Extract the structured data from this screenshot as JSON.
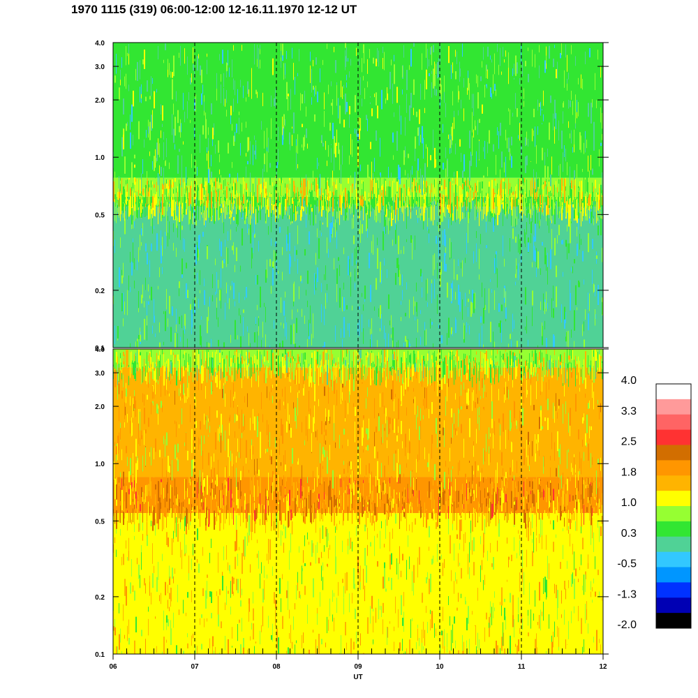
{
  "title": "1970 1115 (319) 06:00-12:00 12-16.11.1970  12-12 UT",
  "chart_data": {
    "type": "heatmap",
    "title": "1970 1115 (319) 06:00-12:00 12-16.11.1970  12-12 UT",
    "xlabel": "UT",
    "x_ticks": [
      "06",
      "07",
      "08",
      "09",
      "10",
      "11",
      "12"
    ],
    "xlim": [
      6,
      12
    ],
    "y_scale": "log",
    "ylim": [
      0.1,
      4.0
    ],
    "panels": [
      {
        "name": "upper",
        "y_ticks": [
          "0.1",
          "0.2",
          "0.5",
          "1.0",
          "2.0",
          "3.0",
          "4.0"
        ],
        "y_tick_values": [
          0.1,
          0.2,
          0.5,
          1.0,
          2.0,
          3.0,
          4.0
        ],
        "bands": [
          {
            "y": [
              0.1,
              0.55
            ],
            "level": 0.2
          },
          {
            "y": [
              0.55,
              0.62
            ],
            "level": 0.6
          },
          {
            "y": [
              0.62,
              0.78
            ],
            "level": 1.0
          },
          {
            "y": [
              0.78,
              4.0
            ],
            "level": 0.4
          }
        ]
      },
      {
        "name": "lower",
        "y_ticks": [
          "0.1",
          "0.2",
          "0.5",
          "1.0",
          "2.0",
          "3.0",
          "4.0"
        ],
        "y_tick_values": [
          0.1,
          0.2,
          0.5,
          1.0,
          2.0,
          3.0,
          4.0
        ],
        "bands": [
          {
            "y": [
              0.1,
              0.55
            ],
            "level": 1.2
          },
          {
            "y": [
              0.55,
              0.85
            ],
            "level": 1.9
          },
          {
            "y": [
              0.85,
              3.2
            ],
            "level": 1.5
          },
          {
            "y": [
              3.2,
              4.0
            ],
            "level": 0.9
          }
        ]
      }
    ],
    "vertical_markers": [
      7,
      8,
      9,
      10,
      11
    ],
    "colorbar": {
      "labels": [
        "4.0",
        "3.3",
        "2.5",
        "1.8",
        "1.0",
        "0.3",
        "-0.5",
        "-1.3",
        "-2.0"
      ],
      "colors": [
        "#ffffff",
        "#ff9a9a",
        "#ff6464",
        "#ff3232",
        "#d26e00",
        "#ff9600",
        "#ffb400",
        "#ffff00",
        "#96ff32",
        "#32e632",
        "#50d296",
        "#32c8ff",
        "#0096ff",
        "#0032ff",
        "#0000b4",
        "#000000"
      ]
    },
    "grid": false
  }
}
